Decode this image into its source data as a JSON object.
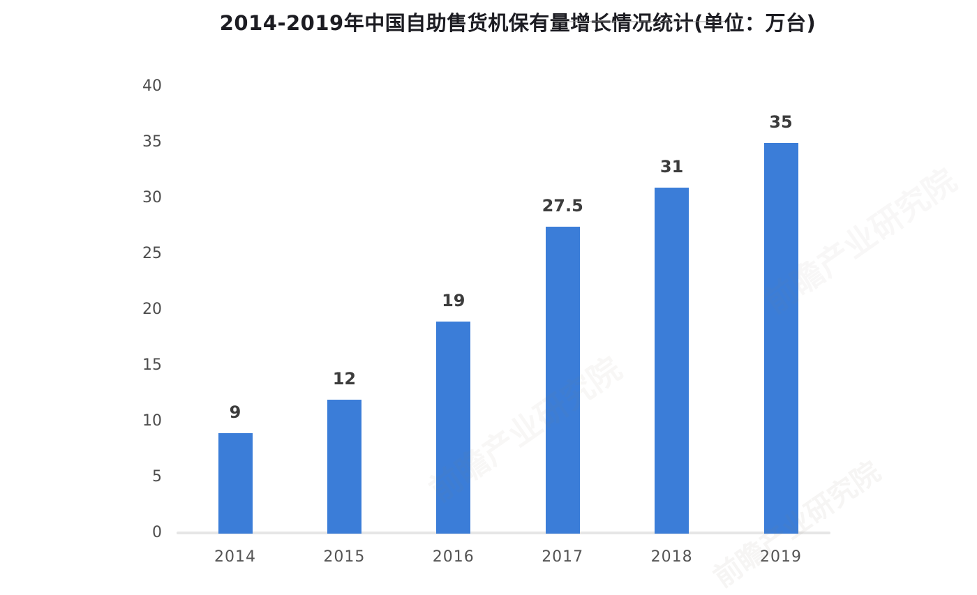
{
  "chart_data": {
    "type": "bar",
    "title": "2014-2019年中国自助售货机保有量增长情况统计(单位：万台)",
    "categories": [
      "2014",
      "2015",
      "2016",
      "2017",
      "2018",
      "2019"
    ],
    "values": [
      9,
      12,
      19,
      27.5,
      31,
      35
    ],
    "value_labels": [
      "9",
      "12",
      "19",
      "27.5",
      "31",
      "35"
    ],
    "unit": "万台",
    "xlabel": "",
    "ylabel": "",
    "ylim": [
      0,
      40
    ],
    "yticks": [
      0,
      5,
      10,
      15,
      20,
      25,
      30,
      35,
      40
    ],
    "grid": false,
    "legend": false,
    "bar_color": "#3b7dd8",
    "axis_line_color": "#e6e6e6",
    "tick_label_color": "#4d4d4d",
    "value_label_color": "#3c3c3c",
    "title_color": "#1c1c22"
  },
  "watermarks": {
    "ghost_text": "前瞻产业研究院"
  }
}
